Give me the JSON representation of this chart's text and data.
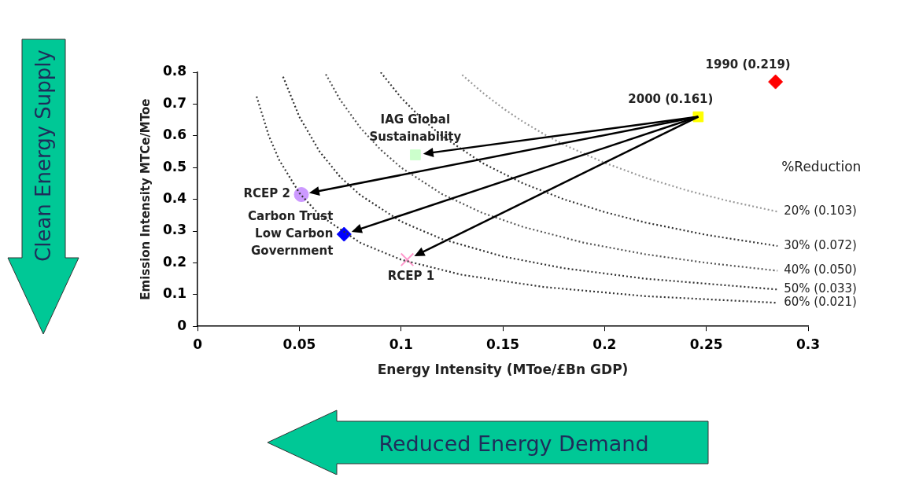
{
  "chart_data": {
    "type": "scatter",
    "xlabel": "Energy Intensity (MToe/£Bn GDP)",
    "ylabel": "Emission Intensity MTCe/MToe",
    "xlim": [
      0,
      0.3
    ],
    "xticks": [
      0,
      0.05,
      0.1,
      0.15,
      0.2,
      0.25,
      0.3
    ],
    "ylim": [
      0,
      0.8
    ],
    "yticks": [
      0,
      0.1,
      0.2,
      0.3,
      0.4,
      0.5,
      0.6,
      0.7,
      0.8
    ],
    "grid": false,
    "legend": false,
    "annotations": [
      "%Reduction",
      "Clean Energy Supply",
      "Reduced Energy Demand"
    ],
    "series": [
      {
        "type": "line",
        "line_style": "dotted",
        "name": "20% (0.103)",
        "color": "#999999",
        "x": [
          0.13,
          0.14,
          0.15,
          0.16,
          0.17,
          0.18,
          0.2,
          0.22,
          0.24,
          0.26,
          0.285
        ],
        "values": [
          0.792,
          0.736,
          0.687,
          0.644,
          0.606,
          0.572,
          0.515,
          0.468,
          0.429,
          0.396,
          0.361
        ]
      },
      {
        "type": "line",
        "line_style": "dotted",
        "name": "30% (0.072)",
        "color": "#333333",
        "x": [
          0.09,
          0.1,
          0.11,
          0.12,
          0.14,
          0.16,
          0.18,
          0.2,
          0.22,
          0.25,
          0.285
        ],
        "values": [
          0.8,
          0.72,
          0.655,
          0.6,
          0.514,
          0.45,
          0.4,
          0.36,
          0.327,
          0.288,
          0.253
        ]
      },
      {
        "type": "line",
        "line_style": "dotted",
        "name": "40% (0.050)",
        "color": "#555555",
        "x": [
          0.063,
          0.07,
          0.08,
          0.09,
          0.1,
          0.12,
          0.14,
          0.16,
          0.19,
          0.22,
          0.25,
          0.285
        ],
        "values": [
          0.794,
          0.714,
          0.625,
          0.556,
          0.5,
          0.417,
          0.357,
          0.313,
          0.263,
          0.227,
          0.2,
          0.175
        ]
      },
      {
        "type": "line",
        "line_style": "dotted",
        "name": "50% (0.033)",
        "color": "#333333",
        "x": [
          0.042,
          0.05,
          0.06,
          0.07,
          0.08,
          0.1,
          0.12,
          0.15,
          0.18,
          0.22,
          0.285
        ],
        "values": [
          0.786,
          0.66,
          0.55,
          0.471,
          0.413,
          0.33,
          0.275,
          0.22,
          0.183,
          0.15,
          0.116
        ]
      },
      {
        "type": "line",
        "line_style": "dotted",
        "name": "60% (0.021)",
        "color": "#333333",
        "x": [
          0.029,
          0.035,
          0.04,
          0.05,
          0.06,
          0.08,
          0.1,
          0.13,
          0.17,
          0.22,
          0.285
        ],
        "values": [
          0.724,
          0.6,
          0.525,
          0.42,
          0.35,
          0.263,
          0.21,
          0.162,
          0.124,
          0.095,
          0.074
        ]
      },
      {
        "type": "scatter",
        "marker": "diamond",
        "name": "1990 (0.219)",
        "color": "#ff0000",
        "x": [
          0.284
        ],
        "values": [
          0.77
        ]
      },
      {
        "type": "scatter",
        "marker": "square",
        "name": "2000 (0.161)",
        "color": "#ffff00",
        "x": [
          0.246
        ],
        "values": [
          0.66
        ]
      },
      {
        "type": "scatter",
        "marker": "square",
        "name": "IAG Global Sustainability",
        "color": "#ccffcc",
        "x": [
          0.107
        ],
        "values": [
          0.54
        ]
      },
      {
        "type": "scatter",
        "marker": "circle",
        "name": "RCEP 2",
        "color": "#cc99ff",
        "x": [
          0.051
        ],
        "values": [
          0.415
        ]
      },
      {
        "type": "scatter",
        "marker": "diamond",
        "name": "Carbon Trust Low Carbon Government",
        "color": "#0000ff",
        "x": [
          0.072
        ],
        "values": [
          0.29
        ]
      },
      {
        "type": "scatter",
        "marker": "cross",
        "name": "RCEP 1",
        "color": "#ff99cc",
        "x": [
          0.103
        ],
        "values": [
          0.21
        ]
      }
    ]
  }
}
